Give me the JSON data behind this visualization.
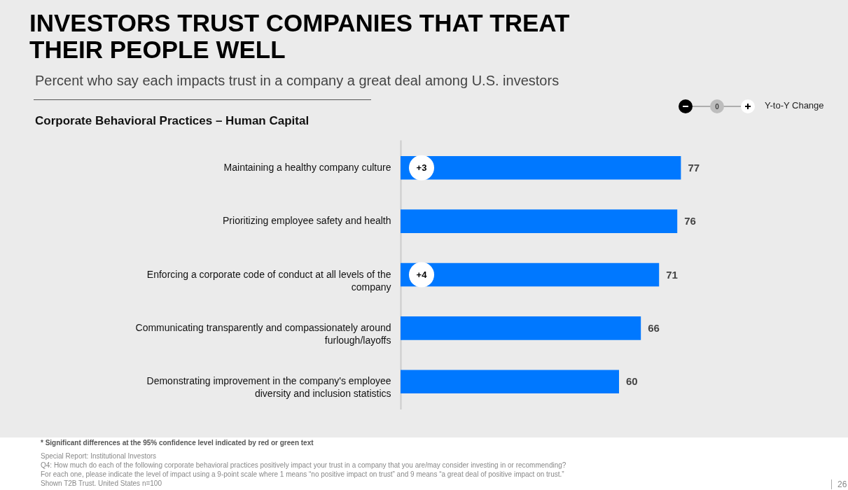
{
  "chart_data": {
    "type": "bar",
    "orientation": "horizontal",
    "title": "INVESTORS TRUST COMPANIES THAT TREAT THEIR PEOPLE WELL",
    "subtitle": "Percent who say each impacts trust in a company a great deal among U.S. investors",
    "categories": [
      "Maintaining a healthy company culture",
      "Prioritizing employee safety and health",
      "Enforcing a corporate code of conduct at all levels of the company",
      "Communicating transparently and compassionately around furlough/layoffs",
      "Demonstrating improvement in the company's employee diversity and inclusion statistics"
    ],
    "values": [
      77,
      76,
      71,
      66,
      60
    ],
    "color": "#0078ff",
    "data_labels": true,
    "tick_labels": "y",
    "annotations": [
      "Corporate Behavioral Practices – Human Capital",
      "0",
      "Y-to-Y Change",
      "* Significant differences at the 95% confidence level indicated by red or green text",
      "Special Report: Institutional Investors",
      "Q4: How much do each of the following corporate behavioral practices positively impact your trust in a company that you are/may consider investing in or recommending?",
      "For each one, please indicate the level of impact using a 9-point scale where 1 means “no positive impact on trust” and 9 means “a great deal of positive impact on trust.”",
      "Shown T2B Trust. United States n=100",
      "26",
      "+3",
      "+4"
    ]
  }
}
